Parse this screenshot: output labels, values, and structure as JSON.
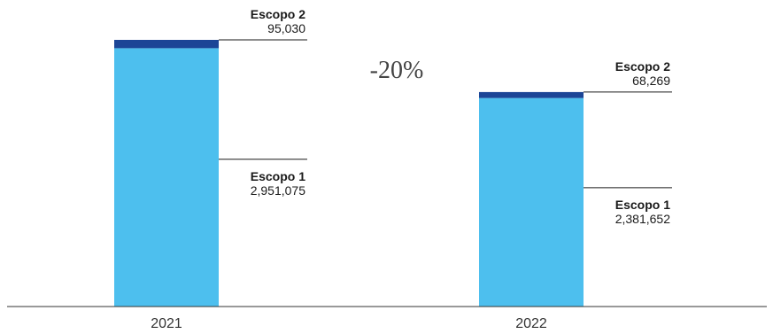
{
  "chart_data": {
    "type": "bar",
    "stacked": true,
    "categories": [
      "2021",
      "2022"
    ],
    "series": [
      {
        "name": "Escopo 1",
        "values": [
          2951075,
          2381652
        ],
        "value_labels": [
          "2,951,075",
          "2,381,652"
        ],
        "color": "#4dbfee"
      },
      {
        "name": "Escopo 2",
        "values": [
          95030,
          68269
        ],
        "value_labels": [
          "95,030",
          "68,269"
        ],
        "color": "#1c4596"
      }
    ],
    "ylim": [
      0,
      3046105
    ],
    "change_label": "-20%",
    "grid": false,
    "title": "",
    "xlabel": "",
    "ylabel": ""
  },
  "colors": {
    "axis": "#333333",
    "leader": "#1a1a1a"
  }
}
